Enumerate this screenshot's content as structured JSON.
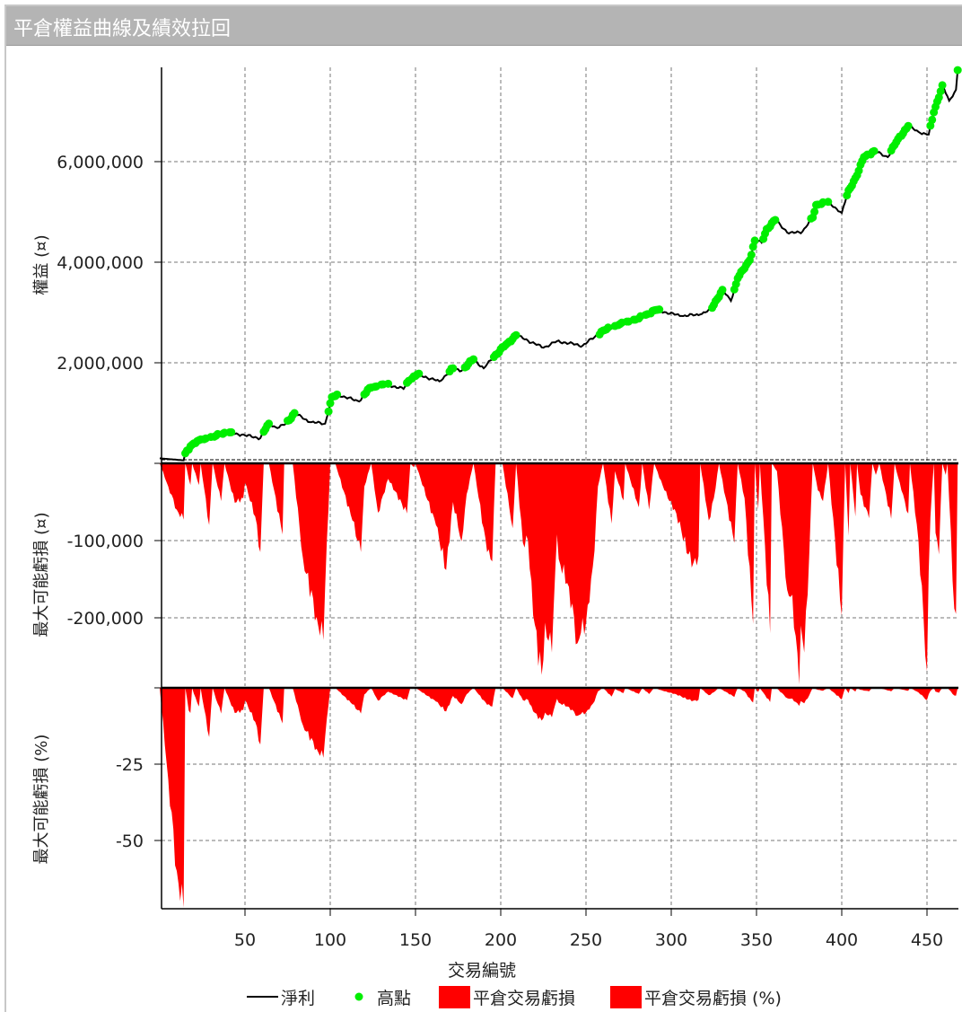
{
  "window": {
    "title": "平倉權益曲線及績效拉回"
  },
  "chart_data": [
    {
      "type": "line",
      "panel": "equity",
      "ylabel": "權益 (¤)",
      "xlim": [
        0,
        468
      ],
      "ylim": [
        0,
        7900000
      ],
      "yticks": [
        {
          "v": 2000000,
          "label": "2,000,000"
        },
        {
          "v": 4000000,
          "label": "4,000,000"
        },
        {
          "v": 6000000,
          "label": "6,000,000"
        }
      ],
      "series": [
        {
          "name": "淨利",
          "color": "#000000",
          "points": [
            [
              0,
              100000
            ],
            [
              14,
              60000
            ],
            [
              15,
              200000
            ],
            [
              18,
              340000
            ],
            [
              23,
              460000
            ],
            [
              31,
              520000
            ],
            [
              38,
              610000
            ],
            [
              48,
              570000
            ],
            [
              59,
              500000
            ],
            [
              62,
              680000
            ],
            [
              64,
              790000
            ],
            [
              69,
              700000
            ],
            [
              74,
              790000
            ],
            [
              79,
              1000000
            ],
            [
              88,
              820000
            ],
            [
              97,
              790000
            ],
            [
              101,
              1320000
            ],
            [
              105,
              1360000
            ],
            [
              117,
              1230000
            ],
            [
              123,
              1500000
            ],
            [
              133,
              1570000
            ],
            [
              143,
              1480000
            ],
            [
              146,
              1640000
            ],
            [
              151,
              1770000
            ],
            [
              164,
              1630000
            ],
            [
              172,
              1890000
            ],
            [
              177,
              1840000
            ],
            [
              184,
              2070000
            ],
            [
              190,
              1890000
            ],
            [
              197,
              2160000
            ],
            [
              204,
              2390000
            ],
            [
              209,
              2550000
            ],
            [
              225,
              2300000
            ],
            [
              233,
              2430000
            ],
            [
              248,
              2340000
            ],
            [
              260,
              2640000
            ],
            [
              269,
              2750000
            ],
            [
              281,
              2880000
            ],
            [
              291,
              3050000
            ],
            [
              306,
              2930000
            ],
            [
              317,
              2960000
            ],
            [
              323,
              3050000
            ],
            [
              330,
              3450000
            ],
            [
              335,
              3230000
            ],
            [
              339,
              3680000
            ],
            [
              346,
              4040000
            ],
            [
              349,
              4430000
            ],
            [
              353,
              4390000
            ],
            [
              356,
              4660000
            ],
            [
              361,
              4840000
            ],
            [
              369,
              4570000
            ],
            [
              377,
              4610000
            ],
            [
              383,
              4890000
            ],
            [
              385,
              5140000
            ],
            [
              392,
              5200000
            ],
            [
              400,
              4980000
            ],
            [
              404,
              5430000
            ],
            [
              409,
              5730000
            ],
            [
              413,
              6090000
            ],
            [
              419,
              6210000
            ],
            [
              427,
              6090000
            ],
            [
              433,
              6450000
            ],
            [
              439,
              6710000
            ],
            [
              446,
              6570000
            ],
            [
              451,
              6540000
            ],
            [
              454,
              6980000
            ],
            [
              459,
              7520000
            ],
            [
              463,
              7210000
            ],
            [
              467,
              7430000
            ],
            [
              468,
              7820000
            ]
          ]
        },
        {
          "name": "高點",
          "color": "#00ee00",
          "marker": "dot",
          "rule": "new equity high"
        }
      ]
    },
    {
      "type": "area",
      "panel": "drawdown",
      "ylabel": "最大可能虧損 (¤)",
      "xlim": [
        0,
        468
      ],
      "ylim": [
        -288000,
        0
      ],
      "yticks": [
        {
          "v": -100000,
          "label": "-100,000"
        },
        {
          "v": -200000,
          "label": "-200,000"
        }
      ],
      "series": [
        {
          "name": "平倉交易虧損",
          "color": "#ff0000",
          "points_k": [
            [
              0,
              0
            ],
            [
              5,
              -30
            ],
            [
              10,
              -60
            ],
            [
              14,
              -73
            ],
            [
              15,
              0
            ],
            [
              18,
              -28
            ],
            [
              19,
              0
            ],
            [
              23,
              -28
            ],
            [
              24,
              0
            ],
            [
              29,
              -80
            ],
            [
              31,
              0
            ],
            [
              36,
              -49
            ],
            [
              38,
              0
            ],
            [
              44,
              -51
            ],
            [
              49,
              -45
            ],
            [
              50,
              -25
            ],
            [
              56,
              -69
            ],
            [
              59,
              -115
            ],
            [
              61,
              0
            ],
            [
              64,
              0
            ],
            [
              72,
              -92
            ],
            [
              73,
              0
            ],
            [
              78,
              0
            ],
            [
              84,
              -123
            ],
            [
              92,
              -199
            ],
            [
              96,
              -229
            ],
            [
              97,
              -161
            ],
            [
              100,
              0
            ],
            [
              103,
              0
            ],
            [
              113,
              -74
            ],
            [
              118,
              -115
            ],
            [
              120,
              -30
            ],
            [
              124,
              0
            ],
            [
              128,
              -64
            ],
            [
              134,
              -20
            ],
            [
              145,
              -65
            ],
            [
              147,
              0
            ],
            [
              149,
              -5
            ],
            [
              150,
              0
            ],
            [
              162,
              -80
            ],
            [
              168,
              -138
            ],
            [
              172,
              -50
            ],
            [
              177,
              -101
            ],
            [
              180,
              -40
            ],
            [
              184,
              0
            ],
            [
              192,
              -115
            ],
            [
              195,
              -127
            ],
            [
              197,
              0
            ],
            [
              201,
              0
            ],
            [
              207,
              -84
            ],
            [
              209,
              0
            ],
            [
              213,
              -103
            ],
            [
              216,
              -100
            ],
            [
              219,
              -197
            ],
            [
              224,
              -274
            ],
            [
              226,
              -206
            ],
            [
              230,
              -245
            ],
            [
              233,
              -92
            ],
            [
              234,
              -124
            ],
            [
              240,
              -160
            ],
            [
              245,
              -233
            ],
            [
              248,
              -200
            ],
            [
              249,
              -222
            ],
            [
              252,
              -180
            ],
            [
              255,
              -113
            ],
            [
              257,
              -30
            ],
            [
              260,
              0
            ],
            [
              265,
              -78
            ],
            [
              267,
              -10
            ],
            [
              272,
              -48
            ],
            [
              273,
              0
            ],
            [
              281,
              -57
            ],
            [
              283,
              0
            ],
            [
              287,
              -60
            ],
            [
              290,
              0
            ],
            [
              296,
              -35
            ],
            [
              303,
              -65
            ],
            [
              310,
              -118
            ],
            [
              313,
              -129
            ],
            [
              316,
              -120
            ],
            [
              317,
              0
            ],
            [
              322,
              -74
            ],
            [
              325,
              -45
            ],
            [
              328,
              0
            ],
            [
              337,
              -103
            ],
            [
              339,
              0
            ],
            [
              343,
              -45
            ],
            [
              348,
              -208
            ],
            [
              349,
              0
            ],
            [
              351,
              -60
            ],
            [
              352,
              0
            ],
            [
              358,
              -220
            ],
            [
              359,
              0
            ],
            [
              362,
              -10
            ],
            [
              368,
              -164
            ],
            [
              371,
              -170
            ],
            [
              375,
              -286
            ],
            [
              376,
              -210
            ],
            [
              378,
              -245
            ],
            [
              380,
              -170
            ],
            [
              383,
              0
            ],
            [
              386,
              -35
            ],
            [
              389,
              -49
            ],
            [
              392,
              0
            ],
            [
              400,
              -197
            ],
            [
              402,
              0
            ],
            [
              404,
              -94
            ],
            [
              405,
              0
            ],
            [
              408,
              -69
            ],
            [
              409,
              0
            ],
            [
              411,
              -40
            ],
            [
              416,
              -71
            ],
            [
              418,
              0
            ],
            [
              420,
              -15
            ],
            [
              422,
              0
            ],
            [
              429,
              -72
            ],
            [
              431,
              0
            ],
            [
              435,
              -35
            ],
            [
              439,
              -65
            ],
            [
              440,
              0
            ],
            [
              445,
              -100
            ],
            [
              450,
              -269
            ],
            [
              451,
              -140
            ],
            [
              452,
              -70
            ],
            [
              454,
              0
            ],
            [
              455,
              -90
            ],
            [
              457,
              -118
            ],
            [
              459,
              0
            ],
            [
              461,
              -15
            ],
            [
              462,
              0
            ],
            [
              466,
              -188
            ],
            [
              467,
              -195
            ],
            [
              468,
              0
            ]
          ]
        }
      ]
    },
    {
      "type": "area",
      "panel": "drawdown_pct",
      "ylabel": "最大可能虧損 (%)",
      "xlim": [
        0,
        468
      ],
      "ylim": [
        -72,
        0
      ],
      "yticks": [
        {
          "v": -25,
          "label": "-25"
        },
        {
          "v": -50,
          "label": "-50"
        }
      ],
      "series": [
        {
          "name": "平倉交易虧損 (%)",
          "color": "#ff0000",
          "rule": "drawdown / running equity peak × 100"
        }
      ]
    }
  ],
  "xaxis": {
    "label": "交易編號",
    "ticks": [
      {
        "v": 50,
        "label": "50"
      },
      {
        "v": 100,
        "label": "100"
      },
      {
        "v": 150,
        "label": "150"
      },
      {
        "v": 200,
        "label": "200"
      },
      {
        "v": 250,
        "label": "250"
      },
      {
        "v": 300,
        "label": "300"
      },
      {
        "v": 350,
        "label": "350"
      },
      {
        "v": 400,
        "label": "400"
      },
      {
        "v": 450,
        "label": "450"
      }
    ]
  },
  "legend": {
    "placement": "bottom",
    "items": [
      {
        "label": "淨利",
        "symbol": "line",
        "color": "#000000"
      },
      {
        "label": "高點",
        "symbol": "dot",
        "color": "#00ee00"
      },
      {
        "label": "平倉交易虧損",
        "symbol": "box",
        "color": "#ff0000"
      },
      {
        "label": "平倉交易虧損 (%)",
        "symbol": "box",
        "color": "#ff0000"
      }
    ]
  }
}
